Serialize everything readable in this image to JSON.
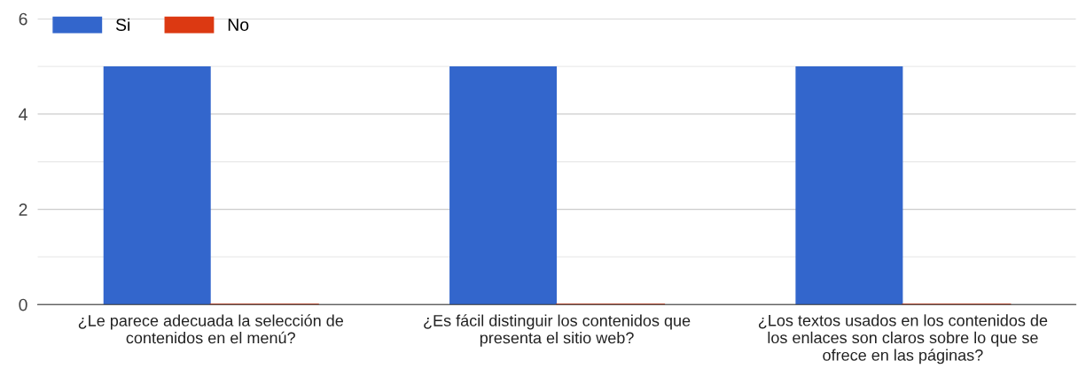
{
  "chart_data": {
    "type": "bar",
    "categories": [
      "¿Le parece adecuada la selección de\ncontenidos en el menú?",
      "¿Es fácil distinguir los contenidos que\npresenta el sitio web?",
      "¿Los textos usados en los contenidos de\nlos enlaces son claros sobre lo que se\nofrece en las páginas?"
    ],
    "series": [
      {
        "name": "Si",
        "color": "#3366cc",
        "values": [
          5,
          5,
          5
        ]
      },
      {
        "name": "No",
        "color": "#dc3912",
        "values": [
          0,
          0,
          0
        ]
      }
    ],
    "ylim": [
      0,
      6
    ],
    "yticks": [
      0,
      {
        "value": 1,
        "label": null
      },
      2,
      {
        "value": 3,
        "label": null
      },
      4,
      {
        "value": 5,
        "label": null
      },
      6
    ],
    "grid": "y",
    "legend": "top left"
  }
}
